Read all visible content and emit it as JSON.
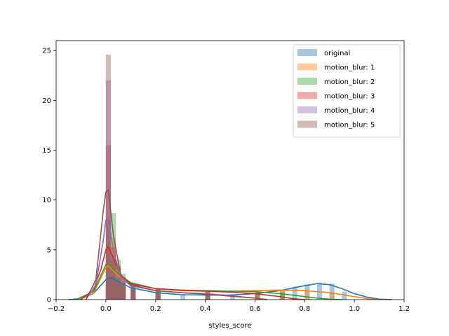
{
  "chart_data": {
    "type": "histogram_kde",
    "title": "",
    "xlabel": "styles_score",
    "ylabel": "",
    "xlim": [
      -0.2,
      1.2
    ],
    "ylim": [
      0,
      26
    ],
    "xticks": [
      -0.2,
      0.0,
      0.2,
      0.4,
      0.6,
      0.8,
      1.0,
      1.2
    ],
    "xtick_labels": [
      "−0.2",
      "0.0",
      "0.2",
      "0.4",
      "0.6",
      "0.8",
      "1.0",
      "1.2"
    ],
    "yticks": [
      0,
      5,
      10,
      15,
      20,
      25
    ],
    "ytick_labels": [
      "0",
      "5",
      "10",
      "15",
      "20",
      "25"
    ],
    "grid": false,
    "legend_position": "top-right",
    "bin_width": 0.02,
    "series": [
      {
        "name": "original",
        "color": "#1f77b4",
        "hist": [
          [
            0.0,
            2.0
          ],
          [
            0.02,
            2.3
          ],
          [
            0.04,
            1.6
          ],
          [
            0.06,
            1.3
          ],
          [
            0.1,
            1.0
          ],
          [
            0.2,
            0.7
          ],
          [
            0.3,
            0.5
          ],
          [
            0.5,
            0.5
          ],
          [
            0.7,
            0.9
          ],
          [
            0.75,
            1.3
          ],
          [
            0.8,
            1.5
          ],
          [
            0.85,
            1.7
          ],
          [
            0.9,
            1.6
          ],
          [
            0.95,
            0.8
          ]
        ],
        "kde": [
          [
            -0.15,
            0.0
          ],
          [
            -0.1,
            0.1
          ],
          [
            -0.05,
            0.6
          ],
          [
            0.0,
            2.0
          ],
          [
            0.02,
            2.2
          ],
          [
            0.05,
            1.8
          ],
          [
            0.1,
            1.2
          ],
          [
            0.2,
            0.7
          ],
          [
            0.3,
            0.5
          ],
          [
            0.4,
            0.45
          ],
          [
            0.5,
            0.45
          ],
          [
            0.6,
            0.6
          ],
          [
            0.7,
            0.9
          ],
          [
            0.8,
            1.4
          ],
          [
            0.85,
            1.6
          ],
          [
            0.9,
            1.5
          ],
          [
            0.95,
            1.1
          ],
          [
            1.0,
            0.6
          ],
          [
            1.05,
            0.25
          ],
          [
            1.1,
            0.05
          ],
          [
            1.15,
            0.0
          ]
        ]
      },
      {
        "name": "motion_blur: 1",
        "color": "#ff7f0e",
        "hist": [
          [
            0.0,
            5.0
          ],
          [
            0.02,
            6.2
          ],
          [
            0.04,
            3.5
          ],
          [
            0.06,
            2.3
          ],
          [
            0.1,
            1.5
          ],
          [
            0.2,
            1.0
          ],
          [
            0.4,
            0.8
          ],
          [
            0.6,
            0.9
          ],
          [
            0.7,
            1.0
          ],
          [
            0.8,
            0.9
          ],
          [
            0.9,
            0.7
          ]
        ],
        "kde": [
          [
            -0.12,
            0.0
          ],
          [
            -0.05,
            0.6
          ],
          [
            0.0,
            3.2
          ],
          [
            0.01,
            3.4
          ],
          [
            0.05,
            2.4
          ],
          [
            0.1,
            1.6
          ],
          [
            0.2,
            1.1
          ],
          [
            0.3,
            0.9
          ],
          [
            0.4,
            0.85
          ],
          [
            0.5,
            0.85
          ],
          [
            0.6,
            0.9
          ],
          [
            0.7,
            0.95
          ],
          [
            0.8,
            0.9
          ],
          [
            0.9,
            0.7
          ],
          [
            1.0,
            0.3
          ],
          [
            1.05,
            0.1
          ],
          [
            1.1,
            0.0
          ]
        ]
      },
      {
        "name": "motion_blur: 2",
        "color": "#2ca02c",
        "hist": [
          [
            0.0,
            8.0
          ],
          [
            0.02,
            8.7
          ],
          [
            0.04,
            4.0
          ],
          [
            0.06,
            2.6
          ],
          [
            0.1,
            1.6
          ],
          [
            0.2,
            1.1
          ],
          [
            0.4,
            0.9
          ],
          [
            0.6,
            0.8
          ],
          [
            0.7,
            0.7
          ]
        ],
        "kde": [
          [
            -0.12,
            0.0
          ],
          [
            -0.05,
            0.8
          ],
          [
            0.0,
            3.5
          ],
          [
            0.01,
            3.6
          ],
          [
            0.05,
            2.6
          ],
          [
            0.1,
            1.7
          ],
          [
            0.2,
            1.1
          ],
          [
            0.3,
            0.95
          ],
          [
            0.4,
            0.9
          ],
          [
            0.5,
            0.85
          ],
          [
            0.6,
            0.8
          ],
          [
            0.7,
            0.6
          ],
          [
            0.8,
            0.3
          ],
          [
            0.85,
            0.15
          ],
          [
            0.9,
            0.05
          ],
          [
            0.95,
            0.0
          ]
        ]
      },
      {
        "name": "motion_blur: 3",
        "color": "#d62728",
        "hist": [
          [
            0.0,
            15.5
          ],
          [
            0.02,
            5.3
          ],
          [
            0.04,
            3.3
          ],
          [
            0.06,
            2.2
          ],
          [
            0.1,
            1.5
          ],
          [
            0.2,
            1.1
          ],
          [
            0.4,
            0.8
          ],
          [
            0.6,
            0.6
          ]
        ],
        "kde": [
          [
            -0.1,
            0.0
          ],
          [
            -0.05,
            1.0
          ],
          [
            -0.02,
            3.0
          ],
          [
            0.0,
            5.0
          ],
          [
            0.01,
            5.3
          ],
          [
            0.03,
            4.2
          ],
          [
            0.06,
            2.4
          ],
          [
            0.1,
            1.6
          ],
          [
            0.2,
            1.1
          ],
          [
            0.3,
            0.95
          ],
          [
            0.4,
            0.85
          ],
          [
            0.5,
            0.75
          ],
          [
            0.6,
            0.6
          ],
          [
            0.7,
            0.3
          ],
          [
            0.75,
            0.1
          ],
          [
            0.8,
            0.0
          ]
        ]
      },
      {
        "name": "motion_blur: 4",
        "color": "#9467bd",
        "hist": [
          [
            0.0,
            22.0
          ],
          [
            0.02,
            4.5
          ],
          [
            0.04,
            2.5
          ],
          [
            0.06,
            1.8
          ],
          [
            0.1,
            1.3
          ],
          [
            0.2,
            0.9
          ],
          [
            0.4,
            0.6
          ]
        ],
        "kde": [
          [
            -0.08,
            0.0
          ],
          [
            -0.04,
            1.5
          ],
          [
            -0.01,
            6.0
          ],
          [
            0.0,
            8.0
          ],
          [
            0.01,
            8.2
          ],
          [
            0.03,
            5.0
          ],
          [
            0.06,
            2.2
          ],
          [
            0.1,
            1.4
          ],
          [
            0.2,
            0.9
          ],
          [
            0.3,
            0.7
          ],
          [
            0.4,
            0.6
          ],
          [
            0.5,
            0.4
          ],
          [
            0.6,
            0.15
          ],
          [
            0.65,
            0.0
          ]
        ]
      },
      {
        "name": "motion_blur: 5",
        "color": "#8c564b",
        "hist": [
          [
            0.0,
            24.6
          ],
          [
            0.02,
            4.0
          ],
          [
            0.04,
            2.2
          ],
          [
            0.06,
            1.6
          ],
          [
            0.1,
            1.2
          ],
          [
            0.2,
            0.8
          ],
          [
            0.4,
            0.5
          ]
        ],
        "kde": [
          [
            -0.08,
            0.0
          ],
          [
            -0.04,
            2.0
          ],
          [
            -0.01,
            9.0
          ],
          [
            0.0,
            10.8
          ],
          [
            0.01,
            11.0
          ],
          [
            0.03,
            6.5
          ],
          [
            0.06,
            2.5
          ],
          [
            0.1,
            1.5
          ],
          [
            0.2,
            0.9
          ],
          [
            0.3,
            0.7
          ],
          [
            0.4,
            0.55
          ],
          [
            0.5,
            0.35
          ],
          [
            0.6,
            0.15
          ],
          [
            0.65,
            0.0
          ]
        ]
      }
    ]
  }
}
